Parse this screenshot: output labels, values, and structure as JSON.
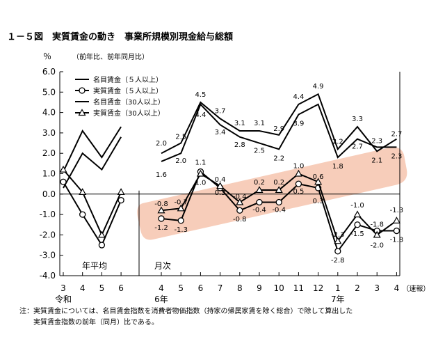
{
  "chart_data": {
    "type": "line",
    "title": "１－５図　実質賃金の動き　事業所規模別現金給与総額",
    "yunit": "％",
    "ysub": "（前年比、前年同月比）",
    "ylim": [
      -4.0,
      6.0
    ],
    "yticks": [
      "6.0",
      "5.0",
      "4.0",
      "3.0",
      "2.0",
      "1.0",
      "0.0",
      "-1.0",
      "-2.0",
      "-3.0",
      "-4.0"
    ],
    "grid": false,
    "legend_position": "top-left",
    "annual_label": "年平均",
    "monthly_label": "月次",
    "x_annual": [
      "3",
      "4",
      "5",
      "6"
    ],
    "x_annual_era": "令和",
    "x_monthly": [
      "4",
      "5",
      "6",
      "7",
      "8",
      "9",
      "10",
      "11",
      "12",
      "1",
      "2",
      "3",
      "4"
    ],
    "x_monthly_extra": [
      "6年",
      "7年",
      "（速報）"
    ],
    "series": [
      {
        "name": "名目賃金（５人以上）",
        "marker": "none",
        "annual": [
          0.3,
          2.0,
          1.2,
          2.8
        ],
        "monthly": [
          2.0,
          2.5,
          4.5,
          3.7,
          3.1,
          3.1,
          2.9,
          4.4,
          4.9,
          2.2,
          3.3,
          2.1,
          2.7
        ]
      },
      {
        "name": "実質賃金（５人以上）",
        "marker": "circle",
        "annual": [
          0.6,
          -1.0,
          -2.5,
          -0.3
        ],
        "monthly": [
          -1.2,
          -1.3,
          1.1,
          0.3,
          -0.8,
          -0.4,
          -0.4,
          0.5,
          0.3,
          -2.8,
          -1.5,
          -1.8,
          -1.8
        ]
      },
      {
        "name": "名目賃金（30人以上）",
        "marker": "none",
        "annual": [
          1.1,
          3.1,
          1.8,
          3.3
        ],
        "monthly": [
          1.6,
          2.0,
          4.4,
          3.4,
          2.8,
          2.5,
          2.2,
          3.9,
          4.4,
          1.8,
          2.7,
          2.3,
          2.3
        ]
      },
      {
        "name": "実質賃金（30人以上）",
        "marker": "triangle",
        "annual": [
          1.2,
          0.1,
          -2.0,
          0.1
        ],
        "monthly": [
          -0.8,
          -0.7,
          1.0,
          0.4,
          -0.4,
          0.2,
          0.2,
          1.0,
          0.6,
          -2.3,
          -1.0,
          -2.0,
          -1.3
        ]
      }
    ],
    "data_labels": [
      {
        "idx": 0,
        "v": 2.0,
        "t": "2.0",
        "dy": -11
      },
      {
        "idx": 0,
        "v": 1.6,
        "t": "1.6",
        "dy": 22
      },
      {
        "idx": 1,
        "v": 2.5,
        "t": "2.5",
        "dy": -6
      },
      {
        "idx": 1,
        "v": 2.0,
        "t": "2.0",
        "dy": 14
      },
      {
        "idx": 2,
        "v": 4.5,
        "t": "4.5",
        "dy": -8
      },
      {
        "idx": 2,
        "v": 4.4,
        "t": "4.4",
        "dy": 18
      },
      {
        "idx": 3,
        "v": 3.7,
        "t": "3.7",
        "dy": -8
      },
      {
        "idx": 3,
        "v": 3.4,
        "t": "3.4",
        "dy": 14
      },
      {
        "idx": 4,
        "v": 3.1,
        "t": "3.1",
        "dy": -8
      },
      {
        "idx": 4,
        "v": 2.8,
        "t": "2.8",
        "dy": 14
      },
      {
        "idx": 5,
        "v": 3.1,
        "t": "3.1",
        "dy": -8
      },
      {
        "idx": 5,
        "v": 2.5,
        "t": "2.5",
        "dy": 14
      },
      {
        "idx": 6,
        "v": 2.9,
        "t": "2.9",
        "dy": -6
      },
      {
        "idx": 6,
        "v": 2.2,
        "t": "2.2",
        "dy": 16
      },
      {
        "idx": 7,
        "v": 4.4,
        "t": "4.4",
        "dy": -8
      },
      {
        "idx": 7,
        "v": 3.9,
        "t": "3.9",
        "dy": 16
      },
      {
        "idx": 8,
        "v": 4.9,
        "t": "4.9",
        "dy": -8
      },
      {
        "idx": 9,
        "v": 2.2,
        "t": "2.2",
        "dy": -8
      },
      {
        "idx": 9,
        "v": 1.8,
        "t": "1.8",
        "dy": 16
      },
      {
        "idx": 10,
        "v": 3.3,
        "t": "3.3",
        "dy": -8
      },
      {
        "idx": 10,
        "v": 2.7,
        "t": "2.7",
        "dy": 14
      },
      {
        "idx": 11,
        "v": 2.3,
        "t": "2.3",
        "dy": -6
      },
      {
        "idx": 11,
        "v": 2.1,
        "t": "2.1",
        "dy": 16
      },
      {
        "idx": 12,
        "v": 2.7,
        "t": "2.7",
        "dy": -4
      },
      {
        "idx": 12,
        "v": 2.3,
        "t": "2.3",
        "dy": 16
      },
      {
        "idx": 0,
        "v": -0.8,
        "t": "-0.8",
        "dy": -6
      },
      {
        "idx": 0,
        "v": -1.2,
        "t": "-1.2",
        "dy": 16
      },
      {
        "idx": 1,
        "v": -0.7,
        "t": "-0.7",
        "dy": -6
      },
      {
        "idx": 1,
        "v": -1.3,
        "t": "-1.3",
        "dy": 16
      },
      {
        "idx": 2,
        "v": 1.1,
        "t": "1.1",
        "dy": -10
      },
      {
        "idx": 2,
        "v": 1.0,
        "t": "1.0",
        "dy": 16
      },
      {
        "idx": 3,
        "v": 0.4,
        "t": "0.4",
        "dy": -6
      },
      {
        "idx": 3,
        "v": 0.3,
        "t": "0.3",
        "dy": 10
      },
      {
        "idx": 4,
        "v": -0.8,
        "t": "-0.8",
        "dy": 16
      },
      {
        "idx": 4,
        "v": -0.4,
        "t": "-0.4",
        "dy": -5
      },
      {
        "idx": 5,
        "v": 0.2,
        "t": "0.2",
        "dy": -8
      },
      {
        "idx": 5,
        "v": -0.4,
        "t": "-0.4",
        "dy": 14
      },
      {
        "idx": 6,
        "v": 0.2,
        "t": "0.2",
        "dy": -8
      },
      {
        "idx": 6,
        "v": -0.4,
        "t": "-0.4",
        "dy": 14
      },
      {
        "idx": 7,
        "v": 1.0,
        "t": "1.0",
        "dy": -8
      },
      {
        "idx": 7,
        "v": 0.5,
        "t": "0.5",
        "dy": 14
      },
      {
        "idx": 8,
        "v": 0.6,
        "t": "0.6",
        "dy": -4
      },
      {
        "idx": 8,
        "v": 0.3,
        "t": "0.3",
        "dy": 22
      },
      {
        "idx": 9,
        "v": -2.3,
        "t": "-2.3",
        "dy": -6
      },
      {
        "idx": 9,
        "v": -2.8,
        "t": "-2.8",
        "dy": 16
      },
      {
        "idx": 10,
        "v": -1.0,
        "t": "-1.0",
        "dy": -10
      },
      {
        "idx": 10,
        "v": -1.5,
        "t": "-1.5",
        "dy": 16
      },
      {
        "idx": 11,
        "v": -1.8,
        "t": "-1.8",
        "dy": -6
      },
      {
        "idx": 11,
        "v": -2.0,
        "t": "-2.0",
        "dy": 18
      },
      {
        "idx": 12,
        "v": -1.3,
        "t": "-1.3",
        "dy": -12
      },
      {
        "idx": 12,
        "v": -1.8,
        "t": "-1.8",
        "dy": 16
      }
    ],
    "highlight_color": "#f6c4ae"
  },
  "note_lines": [
    "注：実質賃金については、名目賃金指数を消費者物価指数（持家の帰属家賃を除く総合）で除して算出した",
    "　　実質賃金指数の前年（同月）比である。"
  ]
}
